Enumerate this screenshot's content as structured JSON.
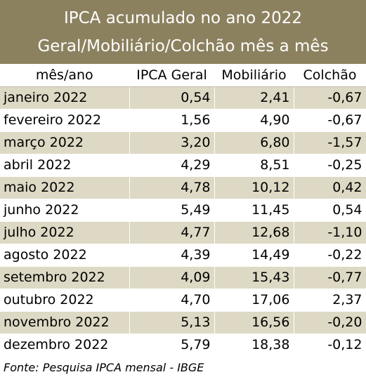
{
  "chart_data": {
    "type": "table",
    "title": "IPCA acumulado no ano 2022",
    "subtitle": "Geral/Mobiliário/Colchão mês a mês",
    "columns": [
      "mês/ano",
      "IPCA Geral",
      "Mobiliário",
      "Colchão"
    ],
    "rows": [
      {
        "month": "janeiro 2022",
        "ipca": "0,54",
        "mobiliario": "2,41",
        "colchao": "-0,67"
      },
      {
        "month": "fevereiro 2022",
        "ipca": "1,56",
        "mobiliario": "4,90",
        "colchao": "-0,67"
      },
      {
        "month": "março 2022",
        "ipca": "3,20",
        "mobiliario": "6,80",
        "colchao": "-1,57"
      },
      {
        "month": "abril 2022",
        "ipca": "4,29",
        "mobiliario": "8,51",
        "colchao": "-0,25"
      },
      {
        "month": "maio 2022",
        "ipca": "4,78",
        "mobiliario": "10,12",
        "colchao": "0,42"
      },
      {
        "month": "junho 2022",
        "ipca": "5,49",
        "mobiliario": "11,45",
        "colchao": "0,54"
      },
      {
        "month": "julho 2022",
        "ipca": "4,77",
        "mobiliario": "12,68",
        "colchao": "-1,10"
      },
      {
        "month": "agosto 2022",
        "ipca": "4,39",
        "mobiliario": "14,49",
        "colchao": "-0,22"
      },
      {
        "month": "setembro 2022",
        "ipca": "4,09",
        "mobiliario": "15,43",
        "colchao": "-0,77"
      },
      {
        "month": "outubro 2022",
        "ipca": "4,70",
        "mobiliario": "17,06",
        "colchao": "2,37"
      },
      {
        "month": "novembro 2022",
        "ipca": "5,13",
        "mobiliario": "16,56",
        "colchao": "-0,20"
      },
      {
        "month": "dezembro 2022",
        "ipca": "5,79",
        "mobiliario": "18,38",
        "colchao": "-0,12"
      }
    ],
    "source": "Fonte: Pesquisa IPCA mensal - IBGE"
  },
  "colors": {
    "title_background": "#8c815f",
    "title_text": "#ffffff",
    "row_shade": "#ddd9c4",
    "row_plain": "#ffffff"
  }
}
